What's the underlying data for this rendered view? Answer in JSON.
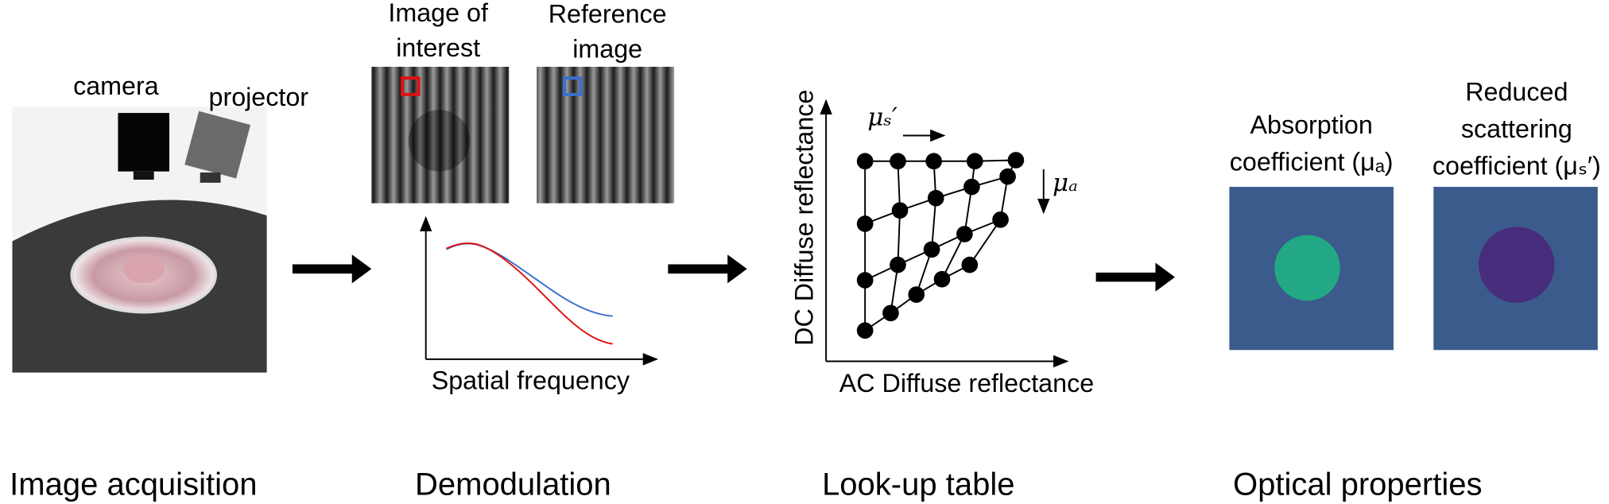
{
  "labels": {
    "camera": "camera",
    "projector": "projector",
    "image_of_interest": [
      "Image of",
      "interest"
    ],
    "reference_image": [
      "Reference",
      "image"
    ],
    "spatial_frequency": "Spatial frequency",
    "dc_axis": "DC Diffuse reflectance",
    "ac_axis": "AC Diffuse reflectance",
    "mu_s": "μₛ′",
    "mu_a": "μₐ",
    "absorption": [
      "Absorption",
      "coefficient (μₐ)"
    ],
    "scattering": [
      "Reduced",
      "scattering",
      "coefficient (μₛ′)"
    ]
  },
  "stages": [
    "Image acquisition",
    "Demodulation",
    "Look-up table",
    "Optical properties"
  ]
}
